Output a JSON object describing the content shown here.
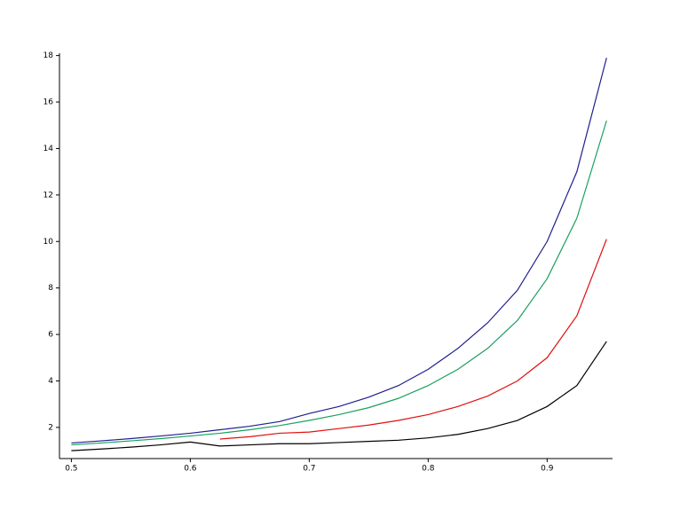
{
  "chart_data": {
    "type": "line",
    "x": [
      0.5,
      0.525,
      0.55,
      0.575,
      0.6,
      0.625,
      0.65,
      0.675,
      0.7,
      0.725,
      0.75,
      0.775,
      0.8,
      0.825,
      0.85,
      0.875,
      0.9,
      0.925,
      0.95
    ],
    "series": [
      {
        "color": "#1f1f8f",
        "values": [
          1.33,
          1.42,
          1.52,
          1.63,
          1.75,
          1.9,
          2.05,
          2.25,
          2.6,
          2.9,
          3.3,
          3.8,
          4.5,
          5.4,
          6.5,
          7.9,
          10.0,
          13.0,
          17.9
        ]
      },
      {
        "color": "#1aa060",
        "values": [
          1.25,
          1.33,
          1.42,
          1.52,
          1.63,
          1.75,
          1.9,
          2.08,
          2.3,
          2.55,
          2.85,
          3.25,
          3.8,
          4.5,
          5.4,
          6.6,
          8.4,
          11.0,
          15.2
        ]
      },
      {
        "color": "#e01010",
        "values": [
          null,
          null,
          null,
          null,
          null,
          1.5,
          1.6,
          1.75,
          1.8,
          1.95,
          2.1,
          2.3,
          2.55,
          2.9,
          3.35,
          4.0,
          5.0,
          6.8,
          10.1
        ]
      },
      {
        "color": "#000000",
        "values": [
          1.0,
          1.07,
          1.15,
          1.25,
          1.37,
          1.2,
          1.25,
          1.3,
          1.3,
          1.35,
          1.4,
          1.45,
          1.55,
          1.7,
          1.95,
          2.3,
          2.9,
          3.8,
          5.7
        ]
      }
    ],
    "xlim": [
      0.49,
      0.955
    ],
    "ylim": [
      0.66,
      18.1
    ],
    "xticks": [
      0.5,
      0.6,
      0.7,
      0.8,
      0.9
    ],
    "yticks": [
      2,
      4,
      6,
      8,
      10,
      12,
      14,
      16,
      18
    ]
  }
}
